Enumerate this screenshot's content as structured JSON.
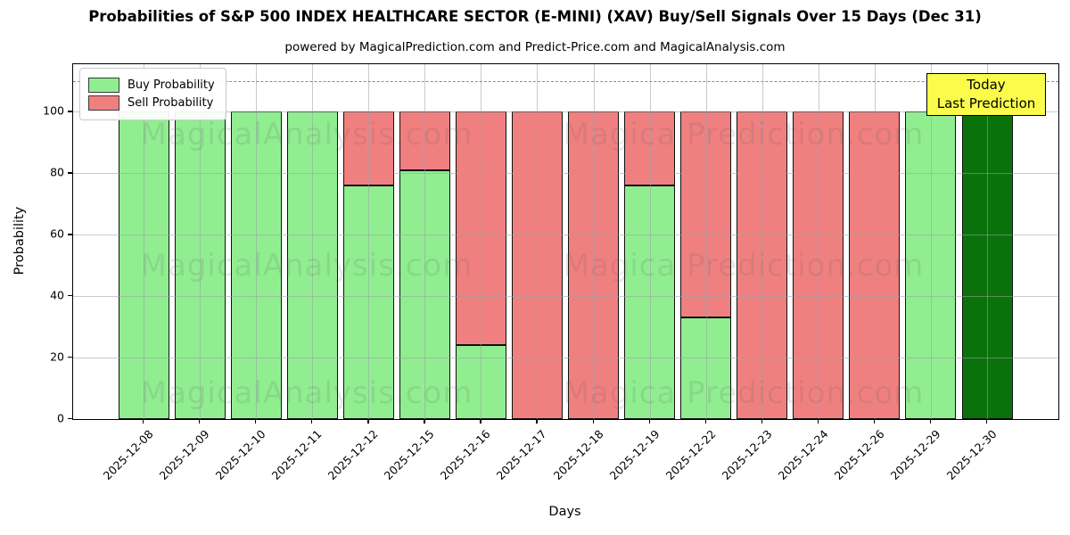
{
  "title": "Probabilities of S&P 500 INDEX HEALTHCARE SECTOR (E-MINI) (XAV) Buy/Sell Signals Over 15 Days (Dec 31)",
  "subtitle": "powered by MagicalPrediction.com and Predict-Price.com and MagicalAnalysis.com",
  "legend": {
    "buy_label": "Buy Probability",
    "sell_label": "Sell Probability"
  },
  "annotation": {
    "line1": "Today",
    "line2": "Last Prediction"
  },
  "axes": {
    "xlabel": "Days",
    "ylabel": "Probability",
    "yticks": [
      0,
      20,
      40,
      60,
      80,
      100
    ],
    "ylim": [
      0,
      115
    ],
    "dashed_line_y": 110
  },
  "watermarks": {
    "left_text": "MagicalAnalysis.com",
    "right_text": "Magica Prediction.com",
    "rows": 3
  },
  "colors": {
    "buy": "#90EE90",
    "sell": "#F08080",
    "today_bar": "#0A720A",
    "annotation_bg": "#FBFB4B",
    "bar_edge": "#101010",
    "grid": "#9aa0a6",
    "dashed_line": "#8c8c8c"
  },
  "chart_data": {
    "type": "bar",
    "stacked": true,
    "title": "Probabilities of S&P 500 INDEX HEALTHCARE SECTOR (E-MINI) (XAV) Buy/Sell Signals Over 15 Days (Dec 31)",
    "xlabel": "Days",
    "ylabel": "Probability",
    "ylim": [
      0,
      115
    ],
    "grid": true,
    "legend_position": "upper left",
    "categories": [
      "2025-12-08",
      "2025-12-09",
      "2025-12-10",
      "2025-12-11",
      "2025-12-12",
      "2025-12-15",
      "2025-12-16",
      "2025-12-17",
      "2025-12-18",
      "2025-12-19",
      "2025-12-22",
      "2025-12-23",
      "2025-12-24",
      "2025-12-26",
      "2025-12-29",
      "2025-12-30"
    ],
    "series": [
      {
        "name": "Buy Probability",
        "color": "#90EE90",
        "values": [
          100,
          100,
          100,
          100,
          76,
          81,
          24,
          0,
          0,
          76,
          33,
          0,
          0,
          0,
          100,
          100
        ]
      },
      {
        "name": "Sell Probability",
        "color": "#F08080",
        "values": [
          0,
          0,
          0,
          0,
          24,
          19,
          76,
          100,
          100,
          24,
          67,
          100,
          100,
          100,
          0,
          0
        ]
      }
    ],
    "highlight_last_bar": {
      "category": "2025-12-30",
      "color": "#0A720A",
      "label": "Today / Last Prediction"
    }
  }
}
